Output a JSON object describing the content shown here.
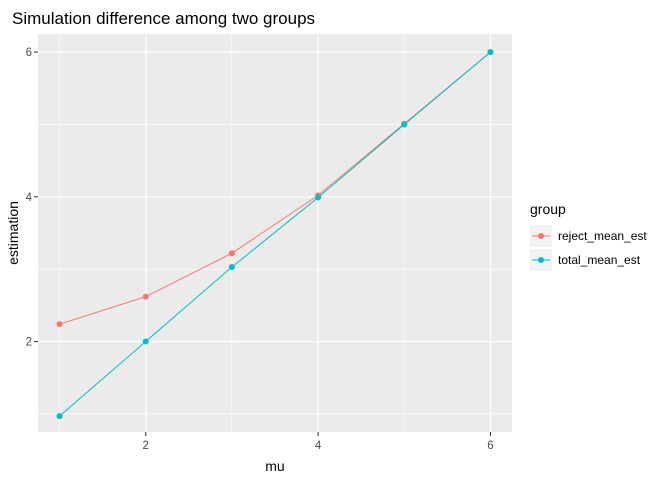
{
  "chart_data": {
    "type": "line",
    "title": "Simulation difference among two groups",
    "xlabel": "mu",
    "ylabel": "estimation",
    "x": [
      1,
      2,
      3,
      4,
      5,
      6
    ],
    "xlim": [
      0.75,
      6.25
    ],
    "ylim": [
      0.75,
      6.25
    ],
    "xticks": [
      2,
      4,
      6
    ],
    "yticks": [
      2,
      4,
      6
    ],
    "grid": true,
    "legend_title": "group",
    "legend_position": "right",
    "series": [
      {
        "name": "reject_mean_est",
        "color": "#F8766D",
        "values": [
          2.24,
          2.62,
          3.22,
          4.02,
          5.01,
          6.0
        ]
      },
      {
        "name": "total_mean_est",
        "color": "#00BFC4",
        "values": [
          0.97,
          2.0,
          3.03,
          3.99,
          5.0,
          6.0
        ]
      }
    ]
  }
}
